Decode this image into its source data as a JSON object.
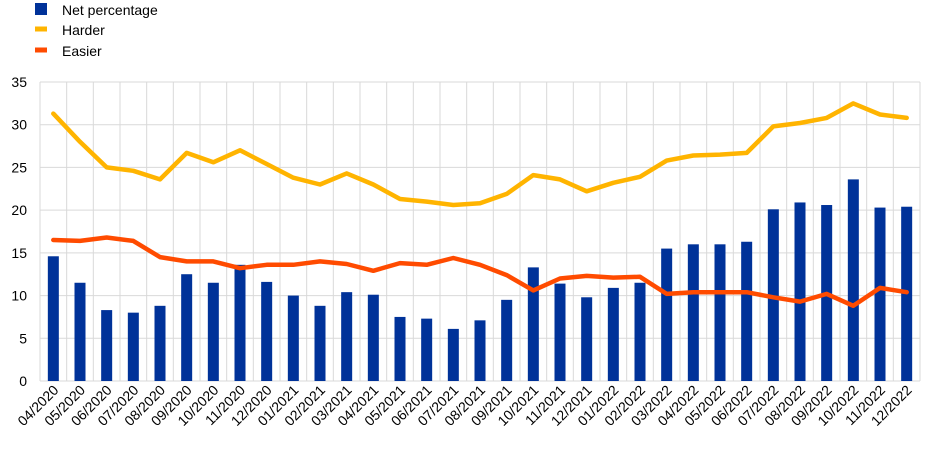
{
  "chart_data": {
    "type": "bar",
    "categories": [
      "04/2020",
      "05/2020",
      "06/2020",
      "07/2020",
      "08/2020",
      "09/2020",
      "10/2020",
      "11/2020",
      "12/2020",
      "01/2021",
      "02/2021",
      "03/2021",
      "04/2021",
      "05/2021",
      "06/2021",
      "07/2021",
      "08/2021",
      "09/2021",
      "10/2021",
      "11/2021",
      "12/2021",
      "01/2022",
      "02/2022",
      "03/2022",
      "04/2022",
      "05/2022",
      "06/2022",
      "07/2022",
      "08/2022",
      "09/2022",
      "10/2022",
      "11/2022",
      "12/2022"
    ],
    "series": [
      {
        "name": "Net percentage",
        "type": "bar",
        "color": "#003299",
        "values": [
          14.6,
          11.5,
          8.3,
          8.0,
          8.8,
          12.5,
          11.5,
          13.6,
          11.6,
          10.0,
          8.8,
          10.4,
          10.1,
          7.5,
          7.3,
          6.1,
          7.1,
          9.5,
          13.3,
          11.4,
          9.8,
          10.9,
          11.5,
          15.5,
          16.0,
          16.0,
          16.3,
          20.1,
          20.9,
          20.6,
          23.6,
          20.3,
          20.4
        ]
      },
      {
        "name": "Harder",
        "type": "line",
        "color": "#ffb400",
        "values": [
          31.3,
          28.0,
          25.0,
          24.6,
          23.6,
          26.7,
          25.6,
          27.0,
          25.4,
          23.8,
          23.0,
          24.3,
          23.0,
          21.3,
          21.0,
          20.6,
          20.8,
          21.9,
          24.1,
          23.6,
          22.2,
          23.2,
          23.9,
          25.8,
          26.4,
          26.5,
          26.7,
          29.8,
          30.2,
          30.8,
          32.5,
          31.2,
          30.8
        ]
      },
      {
        "name": "Easier",
        "type": "line",
        "color": "#ff4b00",
        "values": [
          16.5,
          16.4,
          16.8,
          16.4,
          14.5,
          14.0,
          14.0,
          13.2,
          13.6,
          13.6,
          14.0,
          13.7,
          12.9,
          13.8,
          13.6,
          14.4,
          13.6,
          12.4,
          10.6,
          12.0,
          12.3,
          12.1,
          12.2,
          10.2,
          10.4,
          10.4,
          10.4,
          9.8,
          9.3,
          10.2,
          8.8,
          10.9,
          10.4
        ]
      }
    ],
    "ylim": [
      0,
      35
    ],
    "yticks": [
      0,
      5,
      10,
      15,
      20,
      25,
      30,
      35
    ],
    "grid": true,
    "legend_position": "top-left"
  }
}
